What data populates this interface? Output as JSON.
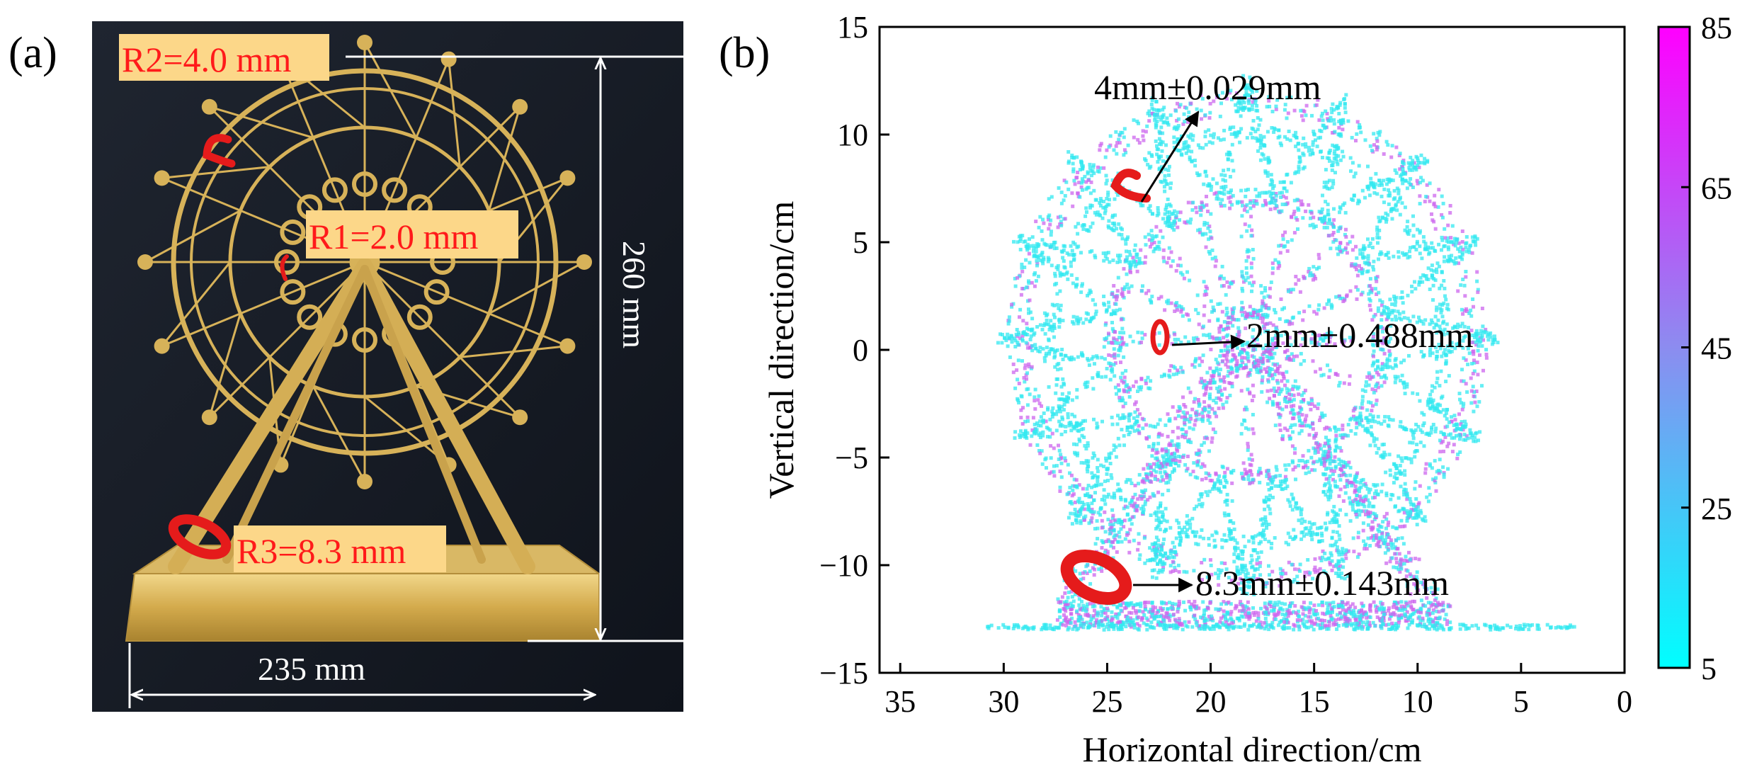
{
  "panel_a": {
    "label": "(a)",
    "r2_label": "R2=4.0 mm",
    "r1_label": "R1=2.0 mm",
    "r3_label": "R3=8.3 mm",
    "height_label": "260 mm",
    "width_label": "235 mm"
  },
  "panel_b": {
    "label": "(b)",
    "annotations": [
      "4mm±0.029mm",
      "2mm±0.488mm",
      "8.3mm±0.143mm"
    ]
  },
  "chart_data": {
    "type": "scatter",
    "title": "",
    "xlabel": "Horizontal direction/cm",
    "ylabel": "Vertical  direction/cm",
    "xlim": [
      36,
      0
    ],
    "ylim": [
      -15,
      15
    ],
    "x_ticks": [
      35,
      30,
      25,
      20,
      15,
      10,
      5,
      0
    ],
    "y_ticks": [
      15,
      10,
      5,
      0,
      -5,
      -10,
      -15
    ],
    "points_description": "point cloud of ferris wheel model",
    "wheel": {
      "center": [
        18.3,
        0.6
      ],
      "outer_radius": 11.0,
      "inner_radius": 6.5,
      "hub_radius": 1.2,
      "spokes": 16
    },
    "base": {
      "x_range": [
        27.5,
        8.5
      ],
      "y_range": [
        -12.8,
        -11.6
      ],
      "ground_x_range": [
        31,
        2.5
      ],
      "ground_y": -12.8
    },
    "legs": [
      [
        [
          27.0,
          -11.6
        ],
        [
          18.3,
          0.6
        ]
      ],
      [
        [
          9.5,
          -11.6
        ],
        [
          18.3,
          0.6
        ]
      ]
    ],
    "colorbar": {
      "min": 5,
      "max": 85,
      "ticks": [
        85,
        65,
        45,
        25,
        5
      ],
      "colors": [
        "#00ffff",
        "#ff00ff"
      ]
    },
    "colors": {
      "low": "#33e8f0",
      "high": "#cc66ee",
      "marker": "#e81414"
    }
  }
}
